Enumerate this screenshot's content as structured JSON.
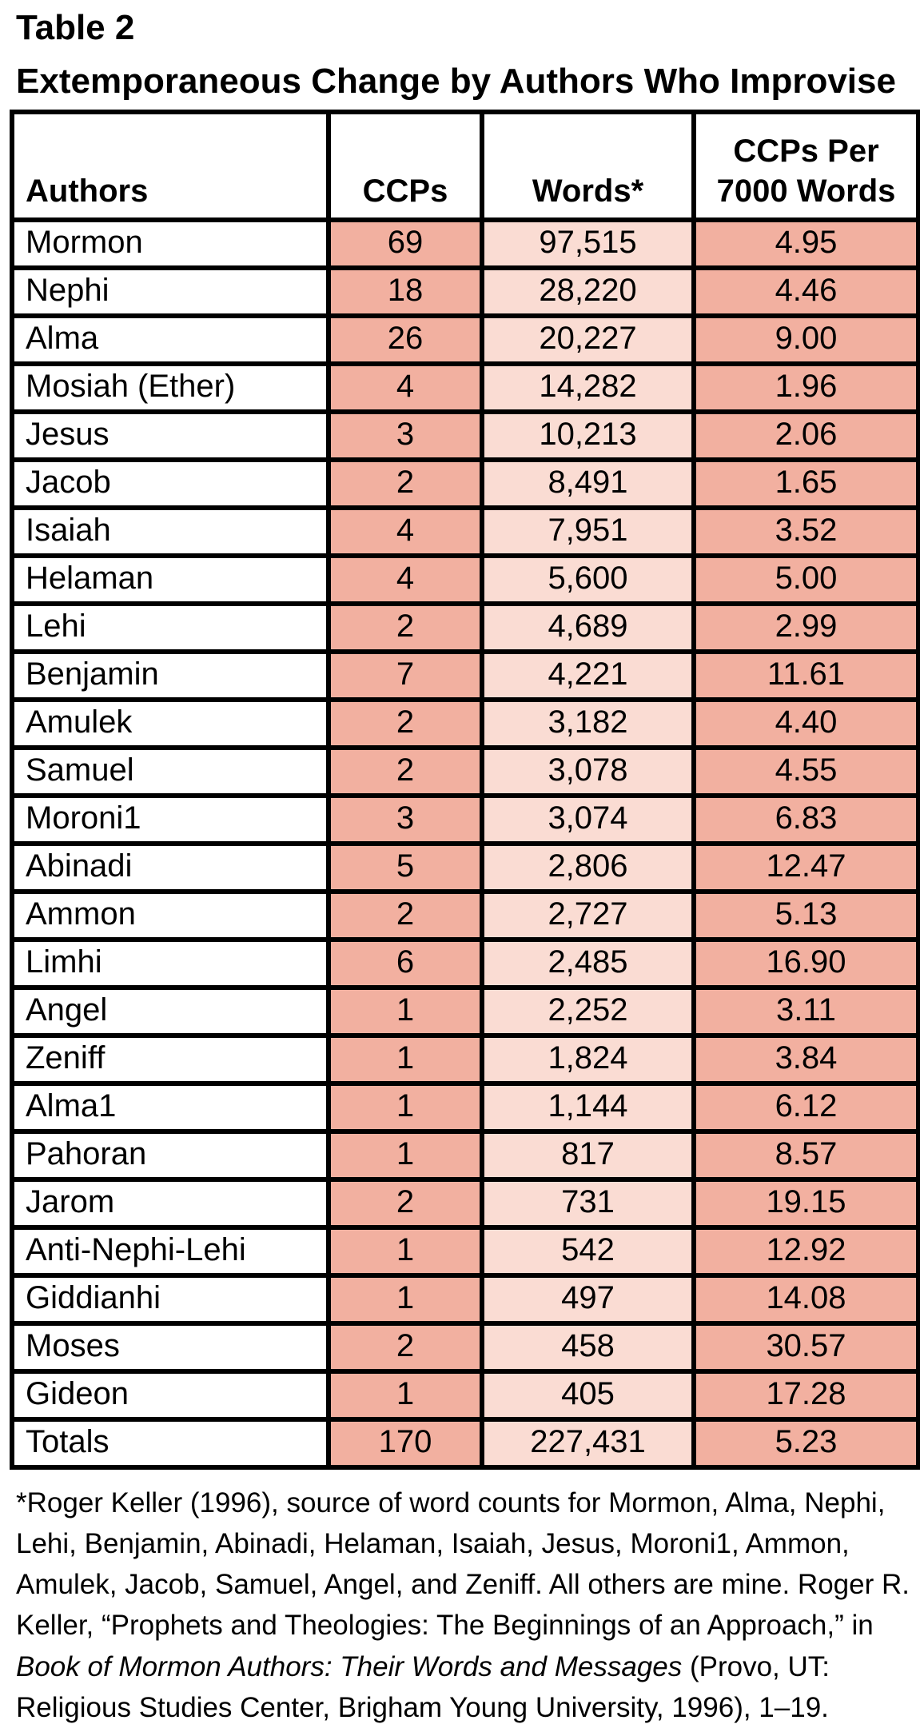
{
  "page": {
    "title": "Table 2",
    "subtitle": "Extemporaneous Change by Authors Who Improvise"
  },
  "colors": {
    "ccps_column": "#F2B0A0",
    "words_column": "#FADCD3",
    "per7000_column": "#F2B0A0",
    "border": "#000000",
    "background": "#FFFFFF"
  },
  "chart_data": {
    "type": "table",
    "title": "Extemporaneous Change by Authors Who Improvise",
    "columns": [
      "Authors",
      "CCPs",
      "Words*",
      "CCPs Per 7000 Words"
    ],
    "rows": [
      [
        "Mormon",
        "69",
        "97,515",
        "4.95"
      ],
      [
        "Nephi",
        "18",
        "28,220",
        "4.46"
      ],
      [
        "Alma",
        "26",
        "20,227",
        "9.00"
      ],
      [
        "Mosiah (Ether)",
        "4",
        "14,282",
        "1.96"
      ],
      [
        "Jesus",
        "3",
        "10,213",
        "2.06"
      ],
      [
        "Jacob",
        "2",
        "8,491",
        "1.65"
      ],
      [
        "Isaiah",
        "4",
        "7,951",
        "3.52"
      ],
      [
        "Helaman",
        "4",
        "5,600",
        "5.00"
      ],
      [
        "Lehi",
        "2",
        "4,689",
        "2.99"
      ],
      [
        "Benjamin",
        "7",
        "4,221",
        "11.61"
      ],
      [
        "Amulek",
        "2",
        "3,182",
        "4.40"
      ],
      [
        "Samuel",
        "2",
        "3,078",
        "4.55"
      ],
      [
        "Moroni1",
        "3",
        "3,074",
        "6.83"
      ],
      [
        "Abinadi",
        "5",
        "2,806",
        "12.47"
      ],
      [
        "Ammon",
        "2",
        "2,727",
        "5.13"
      ],
      [
        "Limhi",
        "6",
        "2,485",
        "16.90"
      ],
      [
        "Angel",
        "1",
        "2,252",
        "3.11"
      ],
      [
        "Zeniff",
        "1",
        "1,824",
        "3.84"
      ],
      [
        "Alma1",
        "1",
        "1,144",
        "6.12"
      ],
      [
        "Pahoran",
        "1",
        "817",
        "8.57"
      ],
      [
        "Jarom",
        "2",
        "731",
        "19.15"
      ],
      [
        "Anti-Nephi-Lehi",
        "1",
        "542",
        "12.92"
      ],
      [
        "Giddianhi",
        "1",
        "497",
        "14.08"
      ],
      [
        "Moses",
        "2",
        "458",
        "30.57"
      ],
      [
        "Gideon",
        "1",
        "405",
        "17.28"
      ]
    ],
    "totals": [
      "Totals",
      "170",
      "227,431",
      "5.23"
    ]
  },
  "footnote": {
    "part1": "*Roger Keller (1996), source of word counts for Mormon, Alma, Nephi, Lehi, Benjamin, Abinadi, Helaman, Isaiah, Jesus, Moroni1, Ammon, Amulek, Jacob, Samuel, Angel, and Zeniff. All others are mine. Roger R. Keller, “Prophets and Theologies: The Beginnings of an Approach,” in ",
    "italic": "Book of Mormon Authors: Their Words and Messages",
    "part2": " (Provo, UT: Religious Studies Center, Brigham Young University, 1996), 1–19."
  }
}
